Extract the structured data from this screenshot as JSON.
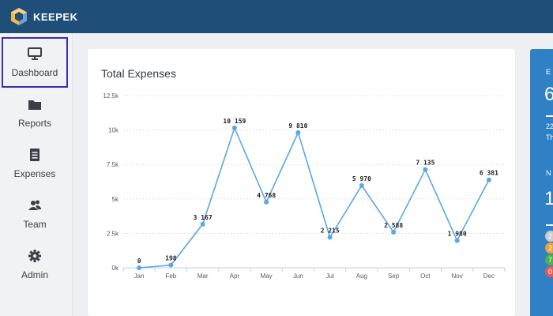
{
  "app": {
    "brand": "KEEPEK"
  },
  "colors": {
    "topbar": "#1f4e79",
    "active_border": "#3d2db3",
    "line": "#5aa6e6",
    "panel": "#2f80c5"
  },
  "sidebar": {
    "items": [
      {
        "label": "Dashboard",
        "icon": "monitor-icon",
        "active": true
      },
      {
        "label": "Reports",
        "icon": "folder-icon",
        "active": false
      },
      {
        "label": "Expenses",
        "icon": "document-icon",
        "active": false
      },
      {
        "label": "Team",
        "icon": "users-icon",
        "active": false
      },
      {
        "label": "Admin",
        "icon": "gear-icon",
        "active": false
      }
    ]
  },
  "card": {
    "title": "Total Expenses"
  },
  "right_panel": {
    "line1": "E",
    "big1": "6",
    "small1": "22",
    "small2": "Th",
    "line2": "N",
    "big2": "1",
    "badges": [
      {
        "text": "2",
        "color": "#c9ccd1"
      },
      {
        "text": "2",
        "color": "#f0a23a"
      },
      {
        "text": "7",
        "color": "#4cb050"
      },
      {
        "text": "0",
        "color": "#e45b5b"
      }
    ]
  },
  "chart_data": {
    "type": "line",
    "categories": [
      "Jan",
      "Feb",
      "Mar",
      "Apr",
      "May",
      "Jun",
      "Jul",
      "Aug",
      "Sep",
      "Oct",
      "Nov",
      "Dec"
    ],
    "values": [
      0,
      198,
      3167,
      10159,
      4768,
      9810,
      2215,
      5970,
      2588,
      7135,
      1980,
      6381
    ],
    "data_labels": [
      "0",
      "198",
      "3 167",
      "10 159",
      "4 768",
      "9 810",
      "2 215",
      "5 970",
      "2 588",
      "7 135",
      "1 980",
      "6 381"
    ],
    "yticks": [
      0,
      2500,
      5000,
      7500,
      10000,
      12500
    ],
    "ytick_labels": [
      "0k",
      "2.5k",
      "5k",
      "7.5k",
      "10k",
      "12.5k"
    ],
    "ylim": [
      0,
      12500
    ],
    "grid": true,
    "title": "Total Expenses",
    "xlabel": "",
    "ylabel": ""
  }
}
